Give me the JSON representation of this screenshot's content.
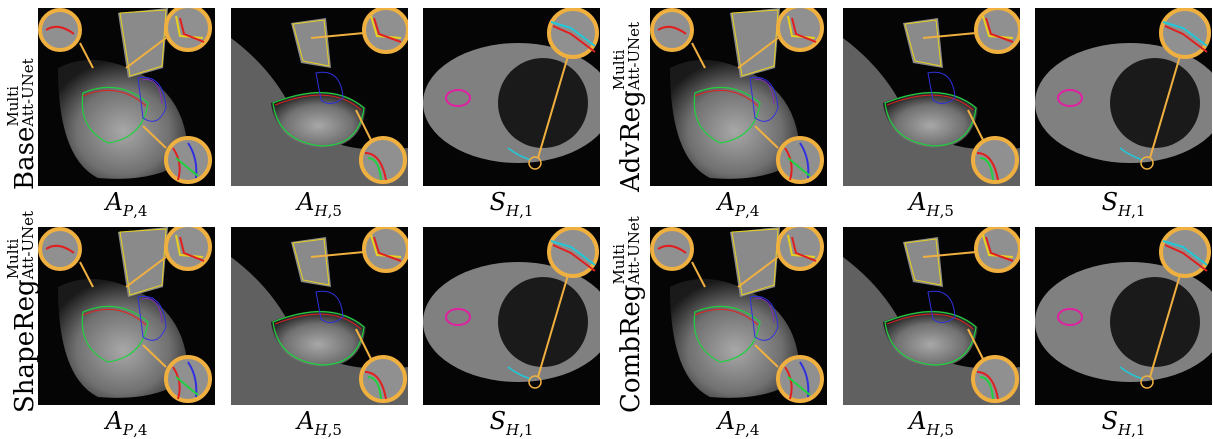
{
  "rows": [
    {
      "label_base": "Base",
      "label_sup": "Multi",
      "label_sub": "Att-UNet"
    },
    {
      "label_base": "AdvReg",
      "label_sup": "Multi",
      "label_sub": "Att-UNet"
    },
    {
      "label_base": "ShapeReg",
      "label_sup": "Multi",
      "label_sub": "Att-UNet"
    },
    {
      "label_base": "CombReg",
      "label_sup": "Multi",
      "label_sub": "Att-UNet"
    }
  ],
  "captions": [
    {
      "main": "A",
      "sub_letter": "P",
      "sub_num": ",4"
    },
    {
      "main": "A",
      "sub_letter": "H",
      "sub_num": ",5"
    },
    {
      "main": "S",
      "sub_letter": "H",
      "sub_num": ",1"
    }
  ],
  "colors": {
    "callout_ring": "#f0b040",
    "contour_red": "#e02020",
    "contour_green": "#20d040",
    "contour_blue": "#3030e0",
    "contour_yellow": "#e8d020",
    "contour_purple": "#8030c0",
    "contour_cyan": "#20c8d8",
    "contour_pink": "#e020a0"
  }
}
